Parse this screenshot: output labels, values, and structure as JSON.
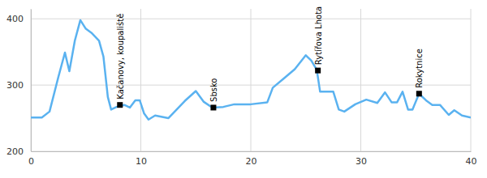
{
  "chart_data": {
    "type": "line",
    "x": [
      0,
      1,
      1.7,
      2.5,
      3.1,
      3.5,
      4.0,
      4.5,
      5.0,
      5.5,
      6.2,
      6.6,
      7.0,
      7.3,
      7.8,
      8.5,
      9.0,
      9.5,
      9.9,
      10.3,
      10.7,
      11.3,
      12.5,
      14.0,
      15.0,
      15.7,
      16.5,
      17.5,
      18.5,
      20.0,
      21.5,
      22.0,
      23.0,
      24.0,
      25.0,
      25.5,
      26.0,
      26.3,
      27.5,
      28.0,
      28.5,
      29.5,
      30.5,
      31.5,
      32.2,
      32.8,
      33.3,
      33.8,
      34.3,
      34.7,
      35.3,
      36.0,
      36.5,
      37.2,
      38.0,
      38.5,
      39.2,
      40.0
    ],
    "series": [
      {
        "color": "#5ab2f0",
        "values": [
          251,
          251,
          260,
          312,
          349,
          321,
          367,
          398,
          385,
          379,
          367,
          343,
          282,
          263,
          267,
          270,
          266,
          277,
          277,
          257,
          248,
          254,
          250,
          276,
          291,
          275,
          266,
          267,
          271,
          271,
          274,
          296,
          310,
          324,
          345,
          337,
          323,
          290,
          290,
          263,
          260,
          271,
          278,
          273,
          289,
          274,
          274,
          290,
          263,
          263,
          287,
          276,
          270,
          270,
          255,
          262,
          254,
          251
        ]
      }
    ],
    "annotations": [
      {
        "label": "Kačanovy, koupaliště",
        "x": 8.1,
        "y": 270
      },
      {
        "label": "Sbsko",
        "x": 16.6,
        "y": 266
      },
      {
        "label": "Rytířova Lhota",
        "x": 26.1,
        "y": 322
      },
      {
        "label": "Rokytnice",
        "x": 35.3,
        "y": 287
      }
    ],
    "xlim": [
      0,
      40
    ],
    "xticks": [
      0,
      10,
      20,
      30,
      40
    ],
    "ylim": [
      200,
      415
    ],
    "yticks": [
      200,
      300,
      400
    ],
    "grid": true
  }
}
